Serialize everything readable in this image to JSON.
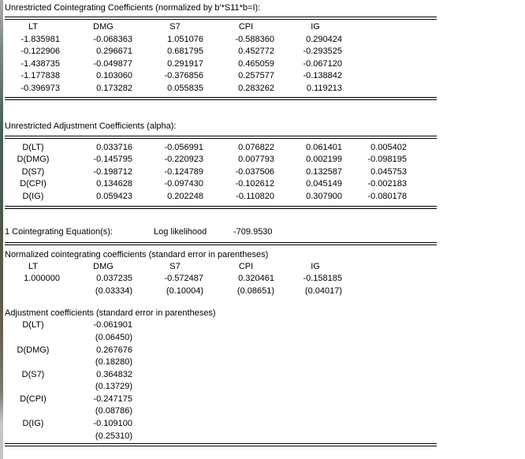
{
  "colors": {
    "text": "#000000",
    "background": "#ffffff",
    "rule": "#000000"
  },
  "coint_table": {
    "title": "Unrestricted Cointegrating Coefficients (normalized by b'*S11*b=I):",
    "columns": [
      "LT",
      "DMG",
      "S7",
      "CPI",
      "IG"
    ],
    "rows": [
      [
        "-1.835981",
        "-0.068363",
        "1.051076",
        "-0.588360",
        "0.290424"
      ],
      [
        "-0.122906",
        "0.296671",
        "0.681795",
        "0.452772",
        "-0.293525"
      ],
      [
        "-1.438735",
        "-0.049877",
        "0.291917",
        "0.465059",
        "-0.067120"
      ],
      [
        "-1.177838",
        "0.103060",
        "-0.376856",
        "0.257577",
        "-0.138842"
      ],
      [
        "-0.396973",
        "0.173282",
        "0.055835",
        "0.283262",
        "0.119213"
      ]
    ]
  },
  "alpha_table": {
    "title": "Unrestricted Adjustment Coefficients (alpha):",
    "rows": [
      {
        "label": "D(LT)",
        "values": [
          "0.033716",
          "-0.056991",
          "0.076822",
          "0.061401",
          "0.005402"
        ]
      },
      {
        "label": "D(DMG)",
        "values": [
          "-0.145795",
          "-0.220923",
          "0.007793",
          "0.002199",
          "-0.098195"
        ]
      },
      {
        "label": "D(S7)",
        "values": [
          "-0.198712",
          "-0.124789",
          "-0.037506",
          "0.132587",
          "0.045753"
        ]
      },
      {
        "label": "D(CPI)",
        "values": [
          "0.134628",
          "-0.097430",
          "-0.102612",
          "0.045149",
          "-0.002183"
        ]
      },
      {
        "label": "D(IG)",
        "values": [
          "0.059423",
          "0.202248",
          "-0.110820",
          "0.307900",
          "-0.080178"
        ]
      }
    ]
  },
  "summary": {
    "label": "1 Cointegrating Equation(s):",
    "loglik_label": "Log likelihood",
    "loglik_value": "-709.9530"
  },
  "normalized": {
    "title": "Normalized cointegrating coefficients (standard error in parentheses)",
    "columns": [
      "LT",
      "DMG",
      "S7",
      "CPI",
      "IG"
    ],
    "values": [
      "1.000000",
      "0.037235",
      "-0.572487",
      "0.320461",
      "-0.158185"
    ],
    "std_errors": [
      "",
      "(0.03334)",
      "(0.10004)",
      "(0.08651)",
      "(0.04017)"
    ]
  },
  "adjustment": {
    "title": "Adjustment coefficients (standard error in parentheses)",
    "rows": [
      {
        "label": "D(LT)",
        "coef": "-0.061901",
        "se": "(0.06450)"
      },
      {
        "label": "D(DMG)",
        "coef": "0.267676",
        "se": "(0.18280)"
      },
      {
        "label": "D(S7)",
        "coef": "0.364832",
        "se": "(0.13729)"
      },
      {
        "label": "D(CPI)",
        "coef": "-0.247175",
        "se": "(0.08786)"
      },
      {
        "label": "D(IG)",
        "coef": "-0.109100",
        "se": "(0.25310)"
      }
    ]
  }
}
